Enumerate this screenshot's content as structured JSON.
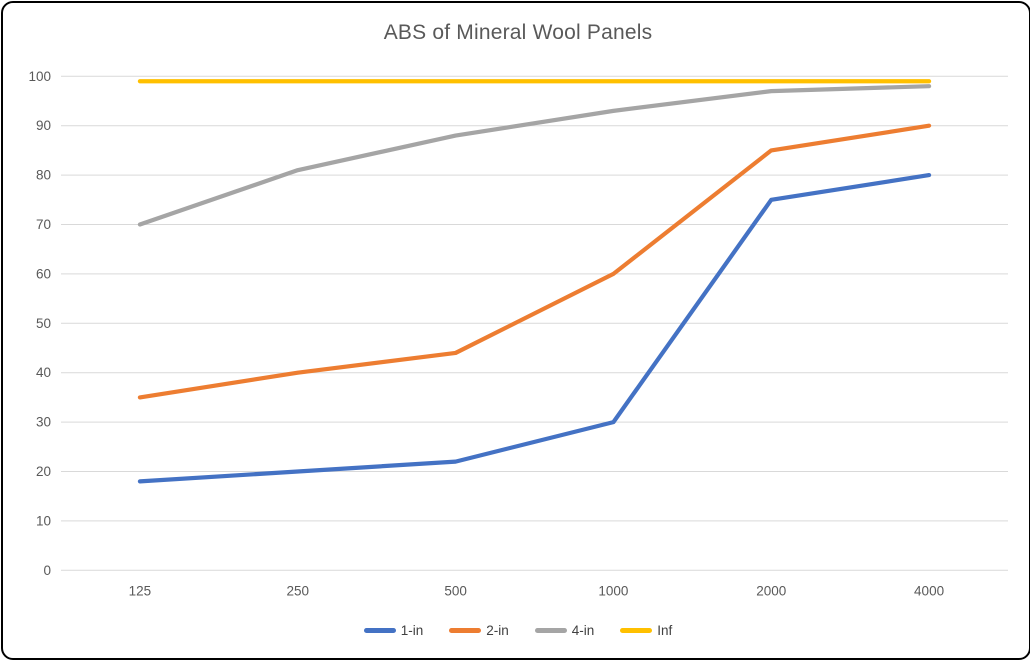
{
  "window": {
    "background": "#ffffff",
    "border_color": "#000000"
  },
  "chart_data": {
    "type": "line",
    "title": "ABS of Mineral Wool Panels",
    "categories": [
      "125",
      "250",
      "500",
      "1000",
      "2000",
      "4000"
    ],
    "series": [
      {
        "name": "1-in",
        "color": "#4472C4",
        "values": [
          18,
          20,
          22,
          30,
          75,
          80
        ]
      },
      {
        "name": "2-in",
        "color": "#ED7D31",
        "values": [
          35,
          40,
          44,
          60,
          85,
          90
        ]
      },
      {
        "name": "4-in",
        "color": "#A5A5A5",
        "values": [
          70,
          81,
          88,
          93,
          97,
          98
        ]
      },
      {
        "name": "Inf",
        "color": "#FFC000",
        "values": [
          99,
          99,
          99,
          99,
          99,
          99
        ]
      }
    ],
    "xlabel": "",
    "ylabel": "",
    "ylim": [
      0,
      100
    ],
    "ytick_step": 10,
    "grid": true,
    "legend_position": "bottom",
    "gridline_color": "#D9D9D9",
    "text_color": "#595959",
    "line_width": 4.2
  }
}
